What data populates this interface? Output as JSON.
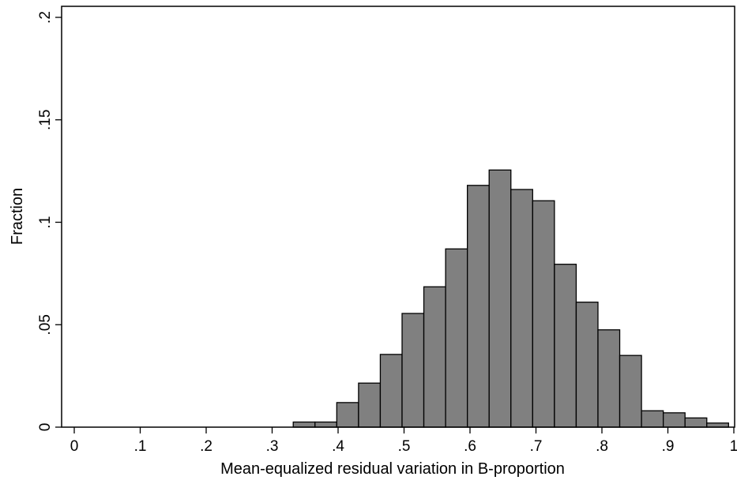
{
  "chart_data": {
    "type": "bar",
    "title": "",
    "xlabel": "Mean-equalized residual variation in B-proportion",
    "ylabel": "Fraction",
    "xlim": [
      0,
      1
    ],
    "ylim": [
      0,
      0.2
    ],
    "x_ticks": [
      {
        "value": 0,
        "label": "0"
      },
      {
        "value": 0.1,
        "label": ".1"
      },
      {
        "value": 0.2,
        "label": ".2"
      },
      {
        "value": 0.3,
        "label": ".3"
      },
      {
        "value": 0.4,
        "label": ".4"
      },
      {
        "value": 0.5,
        "label": ".5"
      },
      {
        "value": 0.6,
        "label": ".6"
      },
      {
        "value": 0.7,
        "label": ".7"
      },
      {
        "value": 0.8,
        "label": ".8"
      },
      {
        "value": 0.9,
        "label": ".9"
      },
      {
        "value": 1,
        "label": "1"
      }
    ],
    "y_ticks": [
      {
        "value": 0,
        "label": "0"
      },
      {
        "value": 0.05,
        "label": ".05"
      },
      {
        "value": 0.1,
        "label": ".1"
      },
      {
        "value": 0.15,
        "label": ".15"
      },
      {
        "value": 0.2,
        "label": ".2"
      }
    ],
    "bins": [
      {
        "start": 0.332,
        "end": 0.365,
        "value": 0.0025
      },
      {
        "start": 0.365,
        "end": 0.398,
        "value": 0.0025
      },
      {
        "start": 0.398,
        "end": 0.431,
        "value": 0.012
      },
      {
        "start": 0.431,
        "end": 0.464,
        "value": 0.0215
      },
      {
        "start": 0.464,
        "end": 0.497,
        "value": 0.0355
      },
      {
        "start": 0.497,
        "end": 0.53,
        "value": 0.0555
      },
      {
        "start": 0.53,
        "end": 0.563,
        "value": 0.0685
      },
      {
        "start": 0.563,
        "end": 0.596,
        "value": 0.087
      },
      {
        "start": 0.596,
        "end": 0.629,
        "value": 0.118
      },
      {
        "start": 0.629,
        "end": 0.662,
        "value": 0.1255
      },
      {
        "start": 0.662,
        "end": 0.695,
        "value": 0.116
      },
      {
        "start": 0.695,
        "end": 0.728,
        "value": 0.1105
      },
      {
        "start": 0.728,
        "end": 0.761,
        "value": 0.0795
      },
      {
        "start": 0.761,
        "end": 0.794,
        "value": 0.061
      },
      {
        "start": 0.794,
        "end": 0.827,
        "value": 0.0475
      },
      {
        "start": 0.827,
        "end": 0.86,
        "value": 0.035
      },
      {
        "start": 0.86,
        "end": 0.893,
        "value": 0.008
      },
      {
        "start": 0.893,
        "end": 0.926,
        "value": 0.007
      },
      {
        "start": 0.926,
        "end": 0.959,
        "value": 0.0045
      },
      {
        "start": 0.959,
        "end": 0.992,
        "value": 0.002
      }
    ],
    "grid": false,
    "legend": "none",
    "bar_fill": "#808080",
    "bar_stroke": "#000000"
  }
}
